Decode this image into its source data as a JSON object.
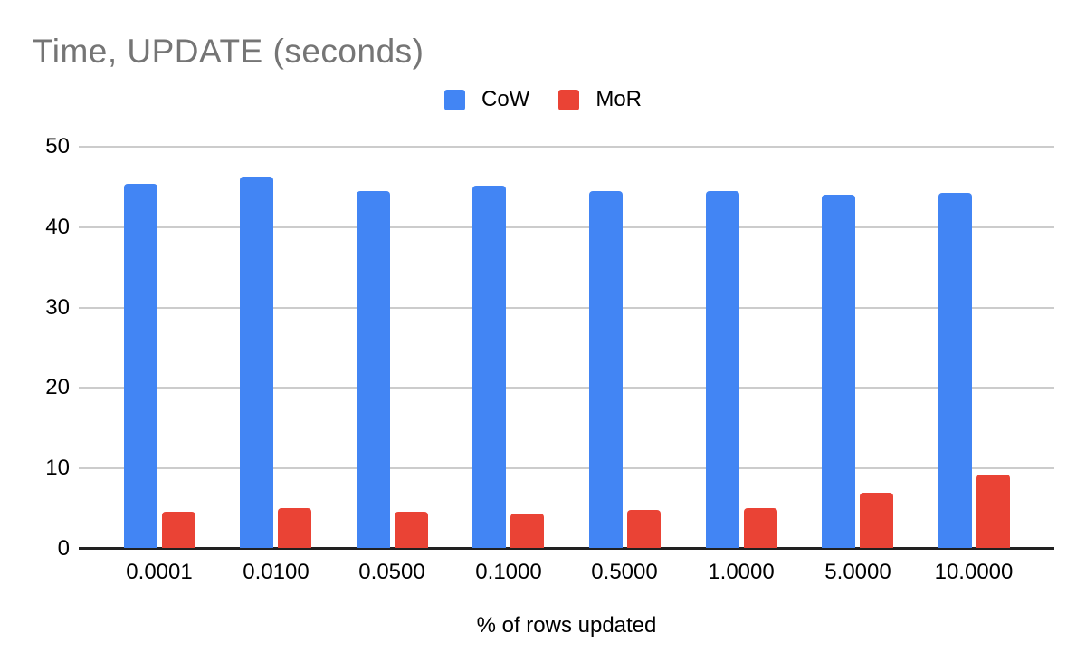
{
  "chart_data": {
    "type": "bar",
    "title": "Time, UPDATE (seconds)",
    "xlabel": "% of rows updated",
    "ylabel": "",
    "categories": [
      "0.0001",
      "0.0100",
      "0.0500",
      "0.1000",
      "0.5000",
      "1.0000",
      "5.0000",
      "10.0000"
    ],
    "series": [
      {
        "name": "CoW",
        "color": "#4285F4",
        "values": [
          45.3,
          46.2,
          44.4,
          45.1,
          44.4,
          44.4,
          43.9,
          44.2
        ]
      },
      {
        "name": "MoR",
        "color": "#EA4335",
        "values": [
          4.5,
          5.0,
          4.5,
          4.3,
          4.7,
          4.9,
          6.9,
          9.1
        ]
      }
    ],
    "ylim": [
      0,
      50
    ],
    "yticks": [
      0,
      10,
      20,
      30,
      40,
      50
    ],
    "grid": "horizontal",
    "legend_position": "top",
    "colors": {
      "title_text": "#757575",
      "axis_text": "#000000",
      "gridline": "#cccccc",
      "axis_line": "#212121",
      "background": "#ffffff"
    }
  }
}
